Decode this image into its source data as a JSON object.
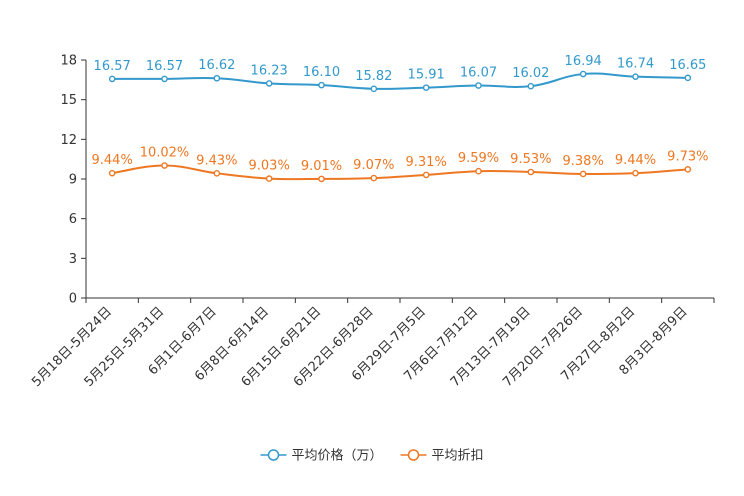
{
  "chart_data": {
    "type": "line",
    "title": "",
    "xlabel": "",
    "ylabel": "",
    "ylim": [
      0,
      18
    ],
    "yticks": [
      0,
      3,
      6,
      9,
      12,
      15,
      18
    ],
    "grid": false,
    "legend_position": "bottom-center",
    "categories": [
      "5月18日-5月24日",
      "5月25日-5月31日",
      "6月1日-6月7日",
      "6月8日-6月14日",
      "6月15日-6月21日",
      "6月22日-6月28日",
      "6月29日-7月5日",
      "7月6日-7月12日",
      "7月13日-7月19日",
      "7月20日-7月26日",
      "7月27日-8月2日",
      "8月3日-8月9日"
    ],
    "series": [
      {
        "name": "平均价格（万）",
        "color": "#3399CC",
        "values": [
          16.57,
          16.57,
          16.62,
          16.23,
          16.1,
          15.82,
          15.91,
          16.07,
          16.02,
          16.94,
          16.74,
          16.65
        ],
        "labels": [
          "16.57",
          "16.57",
          "16.62",
          "16.23",
          "16.10",
          "15.82",
          "15.91",
          "16.07",
          "16.02",
          "16.94",
          "16.74",
          "16.65"
        ]
      },
      {
        "name": "平均折扣",
        "color": "#EE7722",
        "values": [
          9.44,
          10.02,
          9.43,
          9.03,
          9.01,
          9.07,
          9.31,
          9.59,
          9.53,
          9.38,
          9.44,
          9.73
        ],
        "labels": [
          "9.44%",
          "10.02%",
          "9.43%",
          "9.03%",
          "9.01%",
          "9.07%",
          "9.31%",
          "9.59%",
          "9.53%",
          "9.38%",
          "9.44%",
          "9.73%"
        ]
      }
    ]
  }
}
